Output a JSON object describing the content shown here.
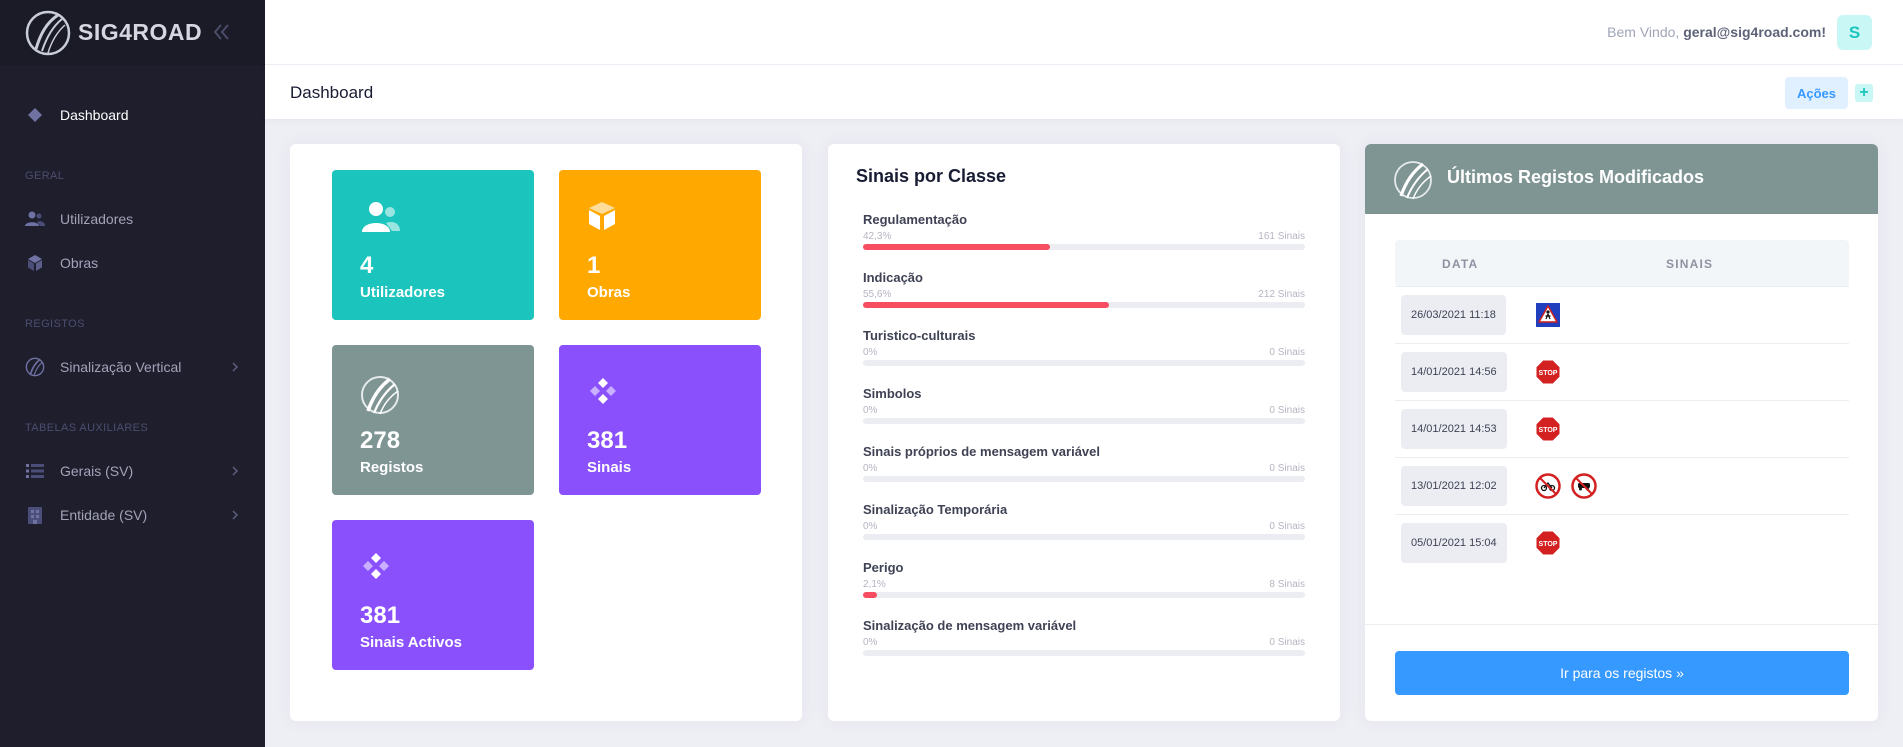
{
  "brand": {
    "name": "SIG4ROAD"
  },
  "sidebar": {
    "dashboard": "Dashboard",
    "section_geral": "GERAL",
    "utilizadores": "Utilizadores",
    "obras": "Obras",
    "section_registos": "REGISTOS",
    "sinalizacao_vertical": "Sinalização Vertical",
    "section_tabelas": "TABELAS AUXILIARES",
    "gerais": "Gerais (SV)",
    "entidade": "Entidade (SV)"
  },
  "header": {
    "welcome_prefix": "Bem Vindo, ",
    "user_email": "geral@sig4road.com!",
    "avatar_initial": "S"
  },
  "subheader": {
    "title": "Dashboard",
    "actions_label": "Ações",
    "plus_label": "+"
  },
  "stats": [
    {
      "value": "4",
      "label": "Utilizadores",
      "color": "#1bc5bd",
      "icon": "users-icon"
    },
    {
      "value": "1",
      "label": "Obras",
      "color": "#ffa800",
      "icon": "cube-icon"
    },
    {
      "value": "278",
      "label": "Registos",
      "color": "#7f9594",
      "icon": "logo-icon"
    },
    {
      "value": "381",
      "label": "Sinais",
      "color": "#8950fc",
      "icon": "diamond-icon"
    },
    {
      "value": "381",
      "label": "Sinais Activos",
      "color": "#8950fc",
      "icon": "diamond-icon"
    }
  ],
  "classes": {
    "title": "Sinais por Classe",
    "items": [
      {
        "name": "Regulamentação",
        "pct_label": "42,3%",
        "count_label": "161 Sinais",
        "fraction": 0.423
      },
      {
        "name": "Indicação",
        "pct_label": "55,6%",
        "count_label": "212 Sinais",
        "fraction": 0.556
      },
      {
        "name": "Turistico-culturais",
        "pct_label": "0%",
        "count_label": "0 Sinais",
        "fraction": 0
      },
      {
        "name": "Simbolos",
        "pct_label": "0%",
        "count_label": "0 Sinais",
        "fraction": 0
      },
      {
        "name": "Sinais próprios de mensagem variável",
        "pct_label": "0%",
        "count_label": "0 Sinais",
        "fraction": 0
      },
      {
        "name": "Sinalização Temporária",
        "pct_label": "0%",
        "count_label": "0 Sinais",
        "fraction": 0
      },
      {
        "name": "Perigo",
        "pct_label": "2,1%",
        "count_label": "8 Sinais",
        "fraction": 0.021
      },
      {
        "name": "Sinalização de mensagem variável",
        "pct_label": "0%",
        "count_label": "0 Sinais",
        "fraction": 0
      }
    ]
  },
  "recent": {
    "title": "Últimos Registos Modificados",
    "col_date": "DATA",
    "col_signs": "SINAIS",
    "stop_text": "STOP",
    "rows": [
      {
        "date": "26/03/2021 11:18",
        "signs": [
          "crosswalk-sign-icon"
        ]
      },
      {
        "date": "14/01/2021 14:56",
        "signs": [
          "stop-sign-icon"
        ]
      },
      {
        "date": "14/01/2021 14:53",
        "signs": [
          "stop-sign-icon"
        ]
      },
      {
        "date": "13/01/2021 12:02",
        "signs": [
          "no-motorcycles-sign-icon",
          "no-cars-sign-icon"
        ]
      },
      {
        "date": "05/01/2021 15:04",
        "signs": [
          "stop-sign-icon"
        ]
      }
    ],
    "button_label": "Ir para os registos »"
  }
}
